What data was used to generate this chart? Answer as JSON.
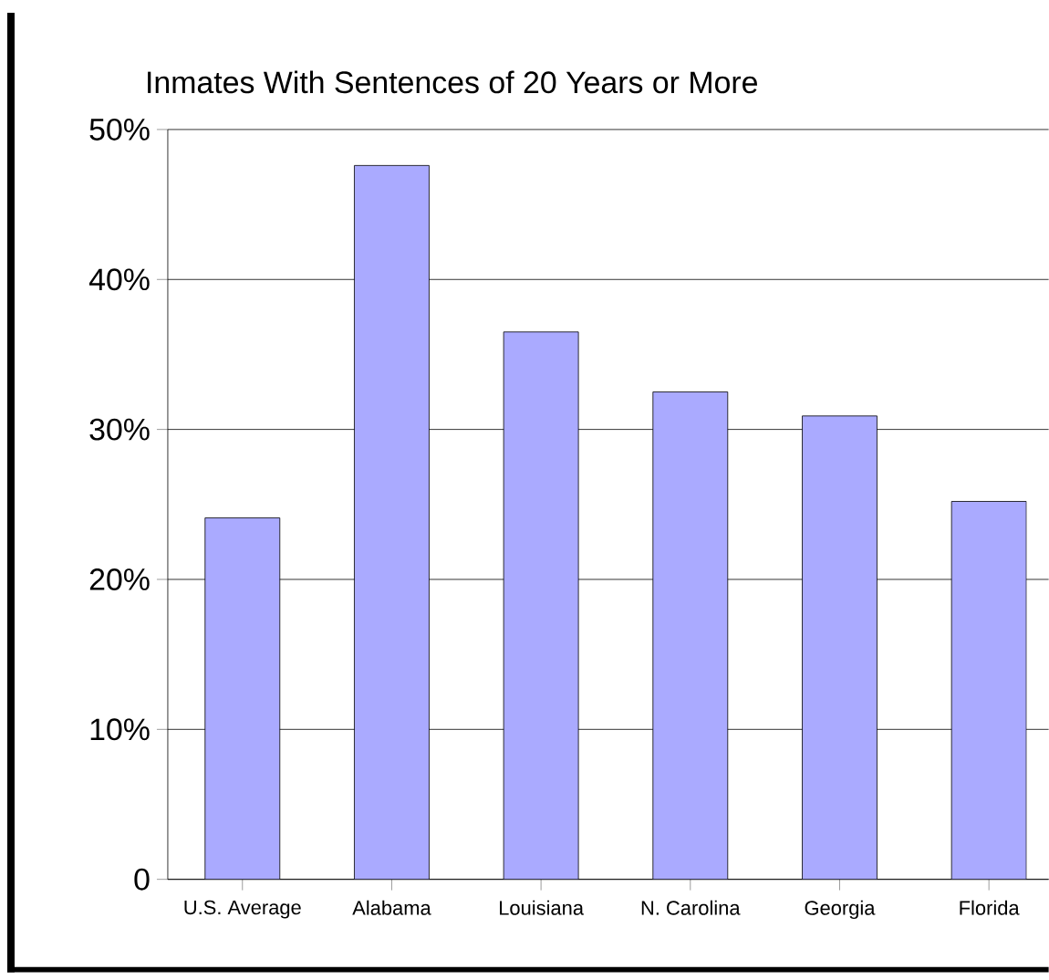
{
  "chart_data": {
    "type": "bar",
    "title": "Inmates With Sentences of 20 Years or More",
    "categories": [
      "U.S. Average",
      "Alabama",
      "Louisiana",
      "N. Carolina",
      "Georgia",
      "Florida"
    ],
    "values": [
      24.1,
      47.6,
      36.5,
      32.5,
      30.9,
      25.2
    ],
    "color": "#aaaaff",
    "ylim": [
      0,
      50
    ],
    "yticks": [
      {
        "value": 0,
        "label": "0"
      },
      {
        "value": 10,
        "label": "10%"
      },
      {
        "value": 20,
        "label": "20%"
      },
      {
        "value": 30,
        "label": "30%"
      },
      {
        "value": 40,
        "label": "40%"
      },
      {
        "value": 50,
        "label": "50%"
      }
    ],
    "grid": "y"
  }
}
